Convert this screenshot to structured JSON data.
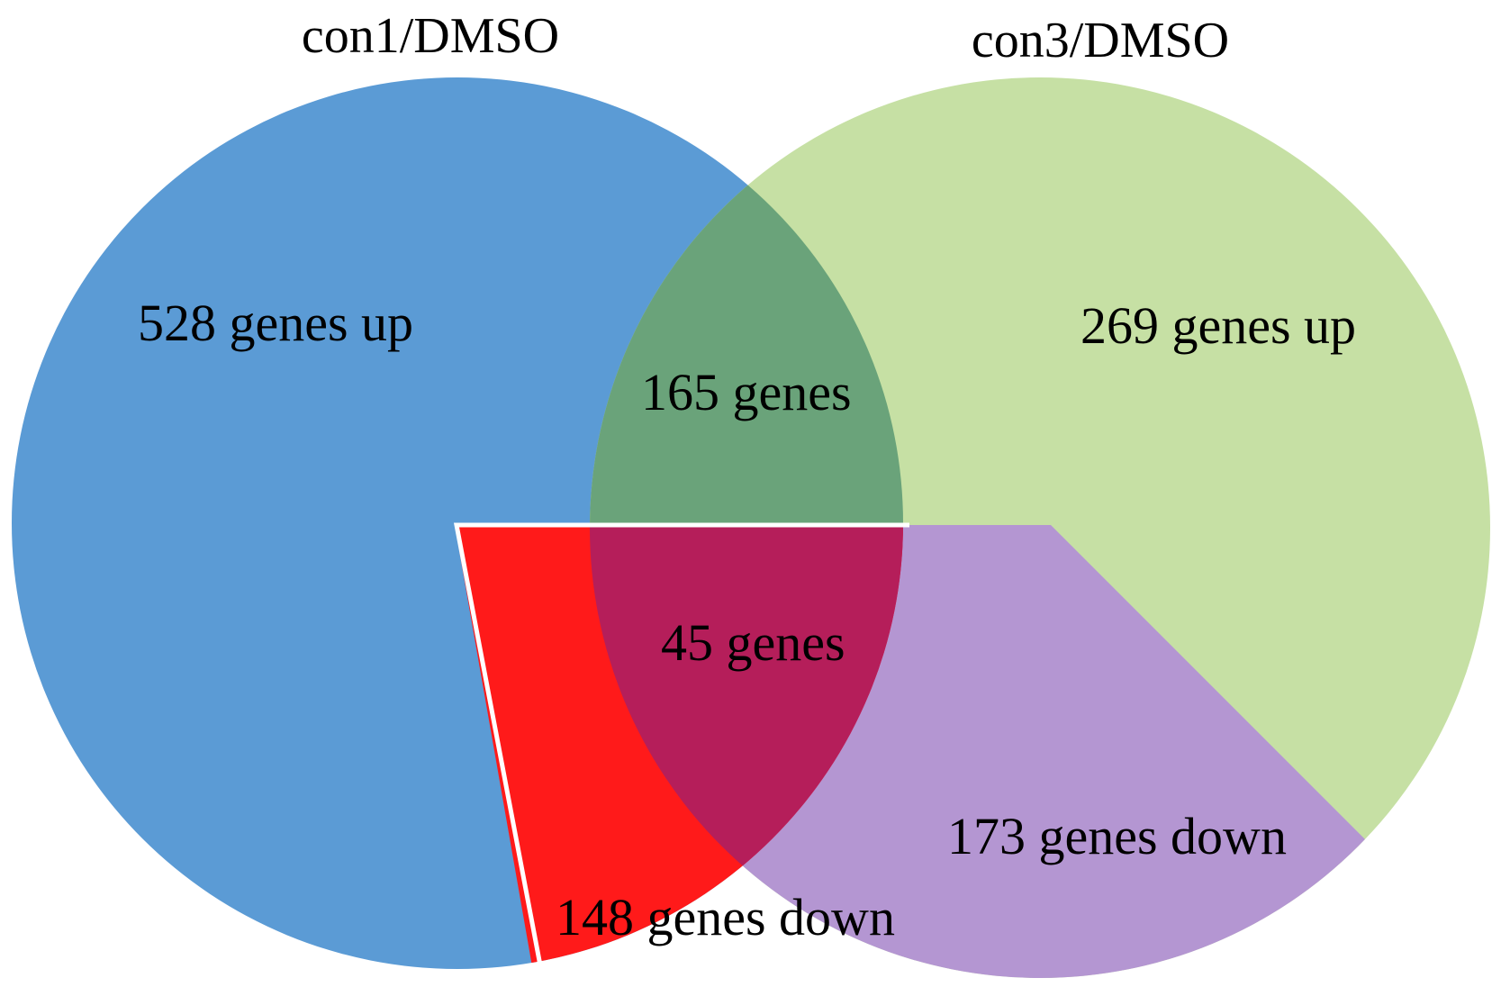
{
  "sets": [
    {
      "name": "con1/DMSO",
      "color": "#5b9bd5"
    },
    {
      "name": "con3/DMSO",
      "color": "#c6e0a4"
    }
  ],
  "regions": {
    "con1_up": "528 genes up",
    "con3_up": "269 genes up",
    "overlap_up": "165 genes",
    "overlap_down": "45 genes",
    "con1_down": "148 genes down",
    "con3_down": "173 genes down"
  },
  "colors": {
    "con1_up": "#5b9bd5",
    "con3_up": "#c6e0a4",
    "overlap_up": "#6aa37a",
    "down_con1": "#ff1a1a",
    "down_con3": "#b496d2",
    "overlap_down": "#b51e5a"
  }
}
